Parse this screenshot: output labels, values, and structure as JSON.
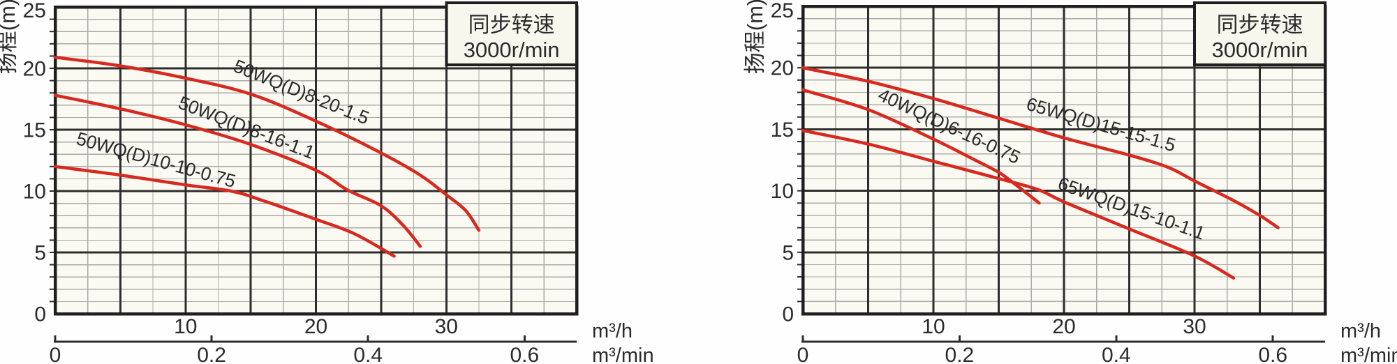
{
  "figure": {
    "description": "Pump performance curves, head vs flow, two charts"
  },
  "colors": {
    "curve_red": "#d8291f",
    "accent_blue": "#166f9e",
    "grid_major": "#2d2d2d",
    "grid_minor": "#aaaaaa",
    "border": "#1f1f1f",
    "plot_bg": "#fbfaf2",
    "box_bg": "#f8f7ee",
    "text": "#2b2b2b"
  },
  "chart_data": [
    {
      "id": "left",
      "type": "line",
      "ylabel": "扬程(m)",
      "x_unit_primary": "m³/h",
      "x_unit_secondary": "m³/min",
      "speed_note": {
        "line1": "同步转速",
        "line2": "3000r/min"
      },
      "xlim": [
        0,
        40
      ],
      "ylim": [
        0,
        25
      ],
      "x_major_step": 5,
      "x_minor_step": 2.5,
      "y_major_step": 5,
      "y_minor_step": 1,
      "y_ticks": [
        "0",
        "5",
        "10",
        "15",
        "20",
        "25"
      ],
      "x_ticks_primary": [
        "10",
        "20",
        "30"
      ],
      "x_ticks_secondary": [
        "0",
        "0.2",
        "0.4",
        "0.6"
      ],
      "secondary_per_primary": 60,
      "series": [
        {
          "name": "50WQ(D)8-20-1.5",
          "points": [
            [
              0,
              20.9
            ],
            [
              5,
              20.2
            ],
            [
              10,
              19.2
            ],
            [
              15,
              17.9
            ],
            [
              20,
              15.7
            ],
            [
              25,
              13.1
            ],
            [
              28,
              11.3
            ],
            [
              30,
              9.7
            ],
            [
              31.5,
              8.4
            ],
            [
              32.5,
              6.8
            ]
          ],
          "label": {
            "x": 18.7,
            "y": 17.6,
            "angle": 22
          }
        },
        {
          "name": "50WQ(D)8-16-1.1",
          "points": [
            [
              0,
              17.8
            ],
            [
              5,
              16.7
            ],
            [
              10,
              15.4
            ],
            [
              15,
              13.8
            ],
            [
              20,
              11.7
            ],
            [
              22.4,
              10.1
            ],
            [
              25,
              8.8
            ],
            [
              26.7,
              7.2
            ],
            [
              28,
              5.5
            ]
          ],
          "label": {
            "x": 14.5,
            "y": 14.7,
            "angle": 21
          }
        },
        {
          "name": "50WQ(D)10-10-0.75",
          "points": [
            [
              0,
              12.0
            ],
            [
              5,
              11.3
            ],
            [
              10,
              10.5
            ],
            [
              13.5,
              10.0
            ],
            [
              16,
              9.2
            ],
            [
              20,
              7.7
            ],
            [
              23,
              6.5
            ],
            [
              26,
              4.7
            ]
          ],
          "label": {
            "x": 7.6,
            "y": 12.05,
            "angle": 15.5
          }
        }
      ]
    },
    {
      "id": "right",
      "type": "line",
      "ylabel": "扬程(m)",
      "x_unit_primary": "m³/h",
      "x_unit_secondary": "m³/min",
      "speed_note": {
        "line1": "同步转速",
        "line2": "3000r/min"
      },
      "xlim": [
        0,
        40
      ],
      "ylim": [
        0,
        25
      ],
      "x_major_step": 5,
      "x_minor_step": 2.5,
      "y_major_step": 5,
      "y_minor_step": 1,
      "y_ticks": [
        "0",
        "5",
        "10",
        "15",
        "20",
        "25"
      ],
      "x_ticks_primary": [
        "10",
        "20",
        "30"
      ],
      "x_ticks_secondary": [
        "0",
        "0.2",
        "0.4",
        "0.6"
      ],
      "secondary_per_primary": 60,
      "series": [
        {
          "name": "65WQ(D)15-15-1.5",
          "points": [
            [
              0,
              20.0
            ],
            [
              5,
              18.9
            ],
            [
              10,
              17.5
            ],
            [
              15,
              15.9
            ],
            [
              20,
              14.3
            ],
            [
              25,
              12.9
            ],
            [
              28,
              11.9
            ],
            [
              30,
              10.8
            ],
            [
              33,
              9.2
            ],
            [
              35,
              8.0
            ],
            [
              36.4,
              7.0
            ]
          ],
          "label": {
            "x": 22.7,
            "y": 14.9,
            "angle": 16
          }
        },
        {
          "name": "40WQ(D)6-16-0.75",
          "points": [
            [
              0,
              18.2
            ],
            [
              5,
              16.6
            ],
            [
              10,
              14.2
            ],
            [
              13,
              12.6
            ],
            [
              15,
              11.5
            ],
            [
              16.3,
              10.5
            ],
            [
              18.1,
              9.0
            ]
          ],
          "label": {
            "x": 11.0,
            "y": 14.8,
            "angle": 25
          }
        },
        {
          "name": "65WQ(D)15-10-1.1",
          "points": [
            [
              0,
              14.9
            ],
            [
              5,
              13.8
            ],
            [
              10,
              12.4
            ],
            [
              15,
              11.0
            ],
            [
              18,
              10.1
            ],
            [
              20,
              9.1
            ],
            [
              25,
              6.9
            ],
            [
              30,
              4.7
            ],
            [
              33,
              2.9
            ]
          ],
          "label": {
            "x": 25.0,
            "y": 8.1,
            "angle": 19.5
          }
        }
      ]
    }
  ]
}
